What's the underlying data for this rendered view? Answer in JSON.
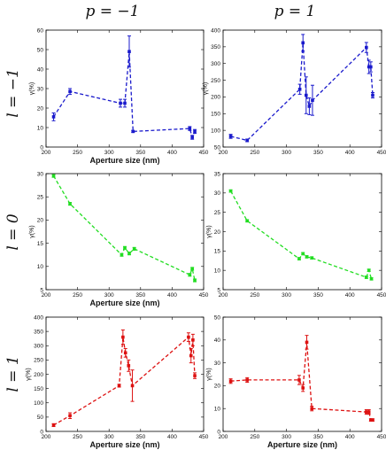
{
  "column_headers": [
    "p = −1",
    "p = 1"
  ],
  "row_headers": [
    "l = −1",
    "l = 0",
    "l = 1"
  ],
  "chart_data": [
    {
      "type": "line",
      "row": 0,
      "col": 0,
      "color": "#1a1acc",
      "xlabel": "Aperture size (nm)",
      "ylabel": "γ(%)",
      "xlim": [
        200,
        450
      ],
      "ylim": [
        0,
        60
      ],
      "xticks": [
        200,
        250,
        300,
        350,
        400,
        450
      ],
      "yticks": [
        0,
        10,
        20,
        30,
        40,
        50,
        60
      ],
      "x": [
        212,
        238,
        318,
        325,
        332,
        338,
        428,
        432,
        436
      ],
      "y": [
        15.5,
        28.5,
        22.5,
        22.5,
        49,
        8,
        9.5,
        5,
        8
      ],
      "err": [
        2,
        1.5,
        2,
        2,
        8,
        0.5,
        1,
        1,
        1
      ]
    },
    {
      "type": "line",
      "row": 0,
      "col": 1,
      "color": "#1a1acc",
      "xlabel": "",
      "ylabel": "γ(%)",
      "xlim": [
        200,
        450
      ],
      "ylim": [
        50,
        400
      ],
      "xticks": [
        200,
        250,
        300,
        350,
        400,
        450
      ],
      "yticks": [
        50,
        100,
        150,
        200,
        250,
        300,
        350,
        400
      ],
      "x": [
        212,
        238,
        321,
        326,
        331,
        336,
        341,
        426,
        430,
        433,
        436
      ],
      "y": [
        82,
        70,
        223,
        362,
        205,
        172,
        190,
        348,
        290,
        290,
        205
      ],
      "err": [
        6,
        4,
        15,
        25,
        55,
        25,
        45,
        15,
        20,
        15,
        8
      ]
    },
    {
      "type": "line",
      "row": 1,
      "col": 0,
      "color": "#22dd22",
      "xlabel": "Aperture size (nm)",
      "ylabel": "γ(%)",
      "xlim": [
        200,
        450
      ],
      "ylim": [
        5,
        30
      ],
      "xticks": [
        200,
        250,
        300,
        350,
        400,
        450
      ],
      "yticks": [
        5,
        10,
        15,
        20,
        25,
        30
      ],
      "x": [
        212,
        238,
        320,
        325,
        332,
        340,
        428,
        432,
        436
      ],
      "y": [
        29.5,
        23.5,
        12.5,
        14,
        12.8,
        13.8,
        8.2,
        9.5,
        7
      ],
      "err": [
        0.3,
        0.3,
        0.3,
        0.3,
        0.3,
        0.3,
        0.3,
        0.3,
        0.3
      ]
    },
    {
      "type": "line",
      "row": 1,
      "col": 1,
      "color": "#22dd22",
      "xlabel": "",
      "ylabel": "γ(%)",
      "xlim": [
        200,
        450
      ],
      "ylim": [
        5,
        35
      ],
      "xticks": [
        200,
        250,
        300,
        350,
        400,
        450
      ],
      "yticks": [
        5,
        10,
        15,
        20,
        25,
        30,
        35
      ],
      "x": [
        212,
        238,
        320,
        326,
        332,
        340,
        426,
        430,
        434
      ],
      "y": [
        30.5,
        22.8,
        13,
        14.3,
        13.5,
        13.2,
        8.2,
        10,
        7.8
      ],
      "err": [
        0.3,
        0.3,
        0.3,
        0.3,
        0.3,
        0.3,
        0.3,
        0.3,
        0.3
      ]
    },
    {
      "type": "line",
      "row": 2,
      "col": 0,
      "color": "#dd1111",
      "xlabel": "Aperture size (nm)",
      "ylabel": "γ(%)",
      "xlim": [
        200,
        450
      ],
      "ylim": [
        0,
        400
      ],
      "xticks": [
        200,
        250,
        300,
        350,
        400,
        450
      ],
      "yticks": [
        0,
        50,
        100,
        150,
        200,
        250,
        300,
        350,
        400
      ],
      "x": [
        212,
        238,
        316,
        322,
        326,
        331,
        337,
        426,
        430,
        433,
        436
      ],
      "y": [
        22,
        55,
        160,
        330,
        275,
        230,
        160,
        330,
        265,
        320,
        195
      ],
      "err": [
        5,
        10,
        5,
        25,
        15,
        20,
        55,
        15,
        25,
        20,
        10
      ]
    },
    {
      "type": "line",
      "row": 2,
      "col": 1,
      "color": "#dd1111",
      "xlabel": "Aperture size (nm)",
      "ylabel": "γ(%)",
      "xlim": [
        200,
        450
      ],
      "ylim": [
        0,
        50
      ],
      "xticks": [
        200,
        250,
        300,
        350,
        400,
        450
      ],
      "yticks": [
        0,
        10,
        20,
        30,
        40,
        50
      ],
      "x": [
        212,
        238,
        320,
        326,
        332,
        340,
        426,
        430,
        433,
        436
      ],
      "y": [
        22,
        22.5,
        22.5,
        19,
        39,
        10,
        8.5,
        8.5,
        5,
        5
      ],
      "err": [
        1,
        1,
        2,
        1.5,
        3,
        1,
        1,
        1,
        0.5,
        0.5
      ]
    }
  ]
}
